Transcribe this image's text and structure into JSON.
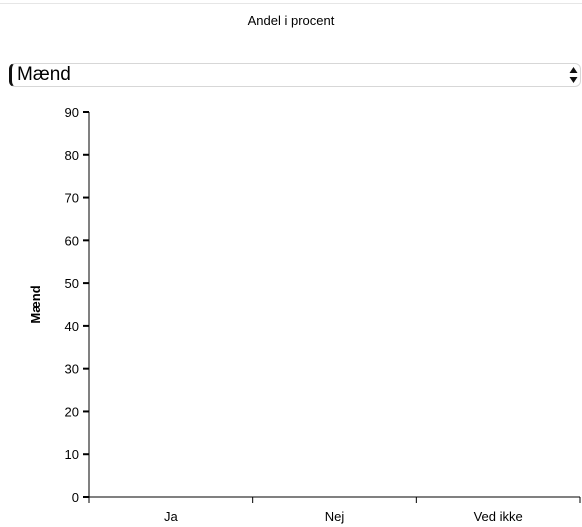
{
  "chart_data": {
    "type": "bar",
    "title": "Andel i procent",
    "categories": [
      "Ja",
      "Nej",
      "Ved ikke"
    ],
    "series": [
      {
        "name": "Mænd",
        "values": [
          0,
          0,
          0
        ]
      }
    ],
    "ylabel": "Mænd",
    "xlabel": "",
    "ylim": [
      0,
      90
    ],
    "yticks": [
      0,
      10,
      20,
      30,
      40,
      50,
      60,
      70,
      80,
      90
    ],
    "grid": false
  },
  "controls": {
    "series_select": {
      "value": "Mænd"
    }
  }
}
